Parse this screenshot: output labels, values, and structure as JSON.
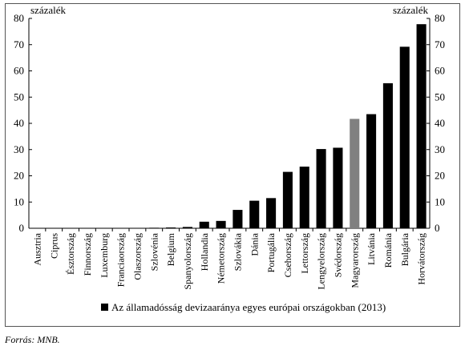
{
  "chart_data": {
    "type": "bar",
    "title": "",
    "ylabel_left": "százalék",
    "ylabel_right": "százalék",
    "xlabel": "",
    "ylim": [
      0,
      80
    ],
    "yticks": [
      0,
      10,
      20,
      30,
      40,
      50,
      60,
      70,
      80
    ],
    "grid": false,
    "legend_position": "bottom",
    "categories": [
      "Ausztria",
      "Ciprus",
      "Észtország",
      "Finnország",
      "Luxemburg",
      "Franciaország",
      "Olaszország",
      "Szlovénia",
      "Belgium",
      "Spanyolország",
      "Hollandia",
      "Németország",
      "Szlovákia",
      "Dánia",
      "Portugália",
      "Csehország",
      "Lettország",
      "Lengyelország",
      "Svédország",
      "Magyarország",
      "Litvánia",
      "Románia",
      "Bulgária",
      "Horvátország"
    ],
    "series": [
      {
        "name": "Az államadósság devizaaránya egyes európai országokban (2013)",
        "values": [
          0,
          0,
          0,
          0,
          0,
          0,
          0.1,
          0.2,
          0.3,
          0.5,
          2.5,
          2.8,
          7.0,
          10.5,
          11.5,
          21.5,
          23.5,
          30.2,
          30.7,
          41.7,
          43.5,
          55.3,
          69.2,
          77.8
        ]
      }
    ],
    "highlight_category": "Magyarország",
    "colors": {
      "bar": "#000000",
      "highlight": "#808080",
      "axis": "#000000"
    }
  },
  "source_note": "Forrás: MNB."
}
